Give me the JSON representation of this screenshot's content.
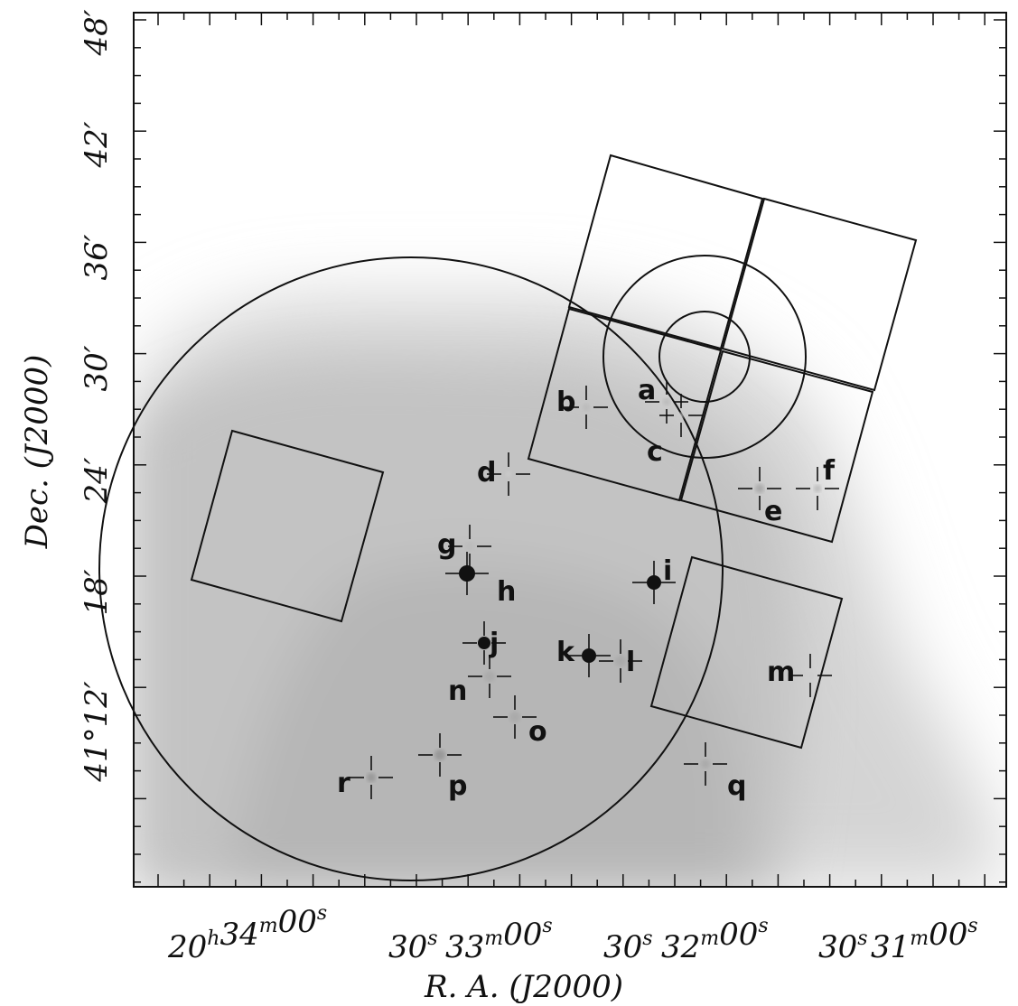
{
  "axes": {
    "xlabel": "R. A. (J2000)",
    "ylabel": "Dec. (J2000)",
    "x_ticks": [
      {
        "label": "20h34m00s",
        "ra_hm": "20:34:00"
      },
      {
        "label": "30s",
        "ra_hm": "20:33:30"
      },
      {
        "label": "33m00s",
        "ra_hm": "20:33:00"
      },
      {
        "label": "30s",
        "ra_hm": "20:32:30"
      },
      {
        "label": "32m00s",
        "ra_hm": "20:32:00"
      },
      {
        "label": "30s",
        "ra_hm": "20:31:30"
      },
      {
        "label": "31m00s",
        "ra_hm": "20:31:00"
      }
    ],
    "y_ticks": [
      {
        "label": "48′",
        "dec_arcmin": 48
      },
      {
        "label": "42′",
        "dec_arcmin": 42
      },
      {
        "label": "36′",
        "dec_arcmin": 36
      },
      {
        "label": "30′",
        "dec_arcmin": 30
      },
      {
        "label": "24′",
        "dec_arcmin": 24
      },
      {
        "label": "18′",
        "dec_arcmin": 18
      },
      {
        "label": "41°12′",
        "dec_arcmin": 12
      }
    ]
  },
  "sources": [
    {
      "id": "a"
    },
    {
      "id": "b"
    },
    {
      "id": "c"
    },
    {
      "id": "d"
    },
    {
      "id": "e"
    },
    {
      "id": "f"
    },
    {
      "id": "g"
    },
    {
      "id": "h"
    },
    {
      "id": "i"
    },
    {
      "id": "j"
    },
    {
      "id": "k"
    },
    {
      "id": "l"
    },
    {
      "id": "m"
    },
    {
      "id": "n"
    },
    {
      "id": "o"
    },
    {
      "id": "p"
    },
    {
      "id": "q"
    },
    {
      "id": "r"
    }
  ],
  "colors": {
    "background": "#ffffff",
    "sky": "#c8c8c8",
    "lines": "#111111"
  }
}
